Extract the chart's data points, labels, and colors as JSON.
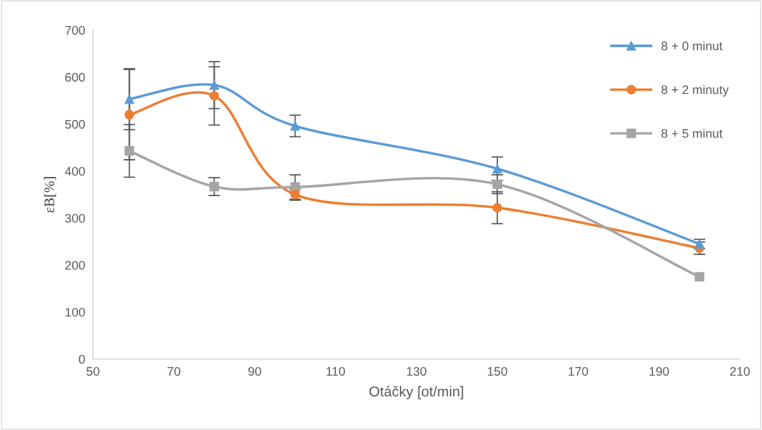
{
  "chart_data": {
    "type": "line",
    "xlabel": "Otáčky [ot/min]",
    "ylabel": "εB[%]",
    "x": [
      59,
      80,
      100,
      150,
      200
    ],
    "xlim": [
      50,
      210
    ],
    "xticks": [
      50,
      70,
      90,
      110,
      130,
      150,
      170,
      190,
      210
    ],
    "ylim": [
      0,
      700
    ],
    "yticks": [
      0,
      100,
      200,
      300,
      400,
      500,
      600,
      700
    ],
    "grid": false,
    "legend": "top right",
    "line_style": "solid",
    "series": [
      {
        "name": "8 + 0 minut",
        "color": "#5b9bd5",
        "marker": "triangle",
        "values": [
          553,
          583,
          496,
          405,
          245
        ],
        "errors": [
          65,
          50,
          23,
          25,
          10
        ]
      },
      {
        "name": "8 + 2 minuty",
        "color": "#ed7d31",
        "marker": "circle",
        "values": [
          520,
          560,
          350,
          322,
          236
        ],
        "errors": [
          96,
          62,
          12,
          34,
          13
        ]
      },
      {
        "name": "8 + 5 minut",
        "color": "#a5a5a5",
        "marker": "square",
        "values": [
          443,
          367,
          366,
          372,
          175
        ],
        "errors": [
          56,
          19,
          26,
          20,
          null
        ]
      }
    ]
  }
}
